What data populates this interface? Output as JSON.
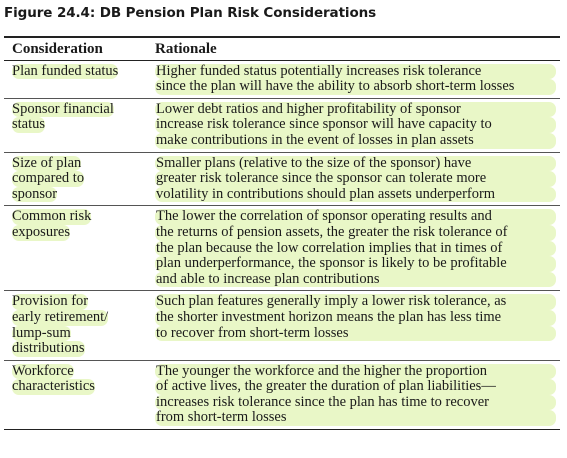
{
  "figure": {
    "title": "Figure 24.4:  DB Pension Plan Risk Considerations"
  },
  "table": {
    "headers": [
      "Consideration",
      "Rationale"
    ],
    "rows": [
      {
        "consideration": [
          "Plan funded status"
        ],
        "rationale": [
          "Higher funded status potentially increases risk tolerance",
          "since the plan will have the ability to absorb short-term losses"
        ]
      },
      {
        "consideration": [
          "Sponsor financial",
          "status"
        ],
        "rationale": [
          "Lower debt ratios and higher profitability of sponsor",
          "increase risk tolerance since sponsor will have capacity to",
          "make contributions in the event of losses in plan assets"
        ]
      },
      {
        "consideration": [
          "Size of plan",
          "compared to",
          "sponsor"
        ],
        "rationale": [
          "Smaller plans (relative to the size of the sponsor) have",
          "greater risk tolerance since the sponsor can tolerate more",
          "volatility in contributions should plan assets underperform"
        ]
      },
      {
        "consideration": [
          "Common risk",
          "exposures"
        ],
        "rationale": [
          "The lower the correlation of sponsor operating results and",
          "the returns of pension assets, the greater the risk tolerance of",
          "the plan because the low correlation implies that in times of",
          "plan underperformance, the sponsor is likely to be profitable",
          "and able to increase plan contributions"
        ]
      },
      {
        "consideration": [
          "Provision for",
          "early retirement/",
          "lump-sum",
          "distributions"
        ],
        "rationale": [
          "Such plan features generally imply a lower risk tolerance, as",
          "the shorter investment horizon means the plan has less time",
          "to recover from short-term losses"
        ]
      },
      {
        "consideration": [
          "Workforce",
          "characteristics"
        ],
        "rationale": [
          "The younger the workforce and the higher the proportion",
          "of active lives, the greater the duration of plan liabilities—",
          "increases risk tolerance since the plan has time to recover",
          "from short-term losses"
        ]
      }
    ]
  },
  "colors": {
    "highlight": "#e9f7c7",
    "rule": "#222222"
  }
}
